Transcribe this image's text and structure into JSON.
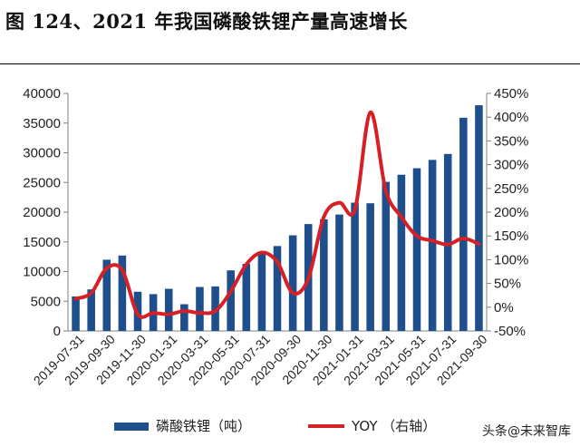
{
  "title": "图 124、2021 年我国磷酸铁锂产量高速增长",
  "watermark": "头条@未来智库",
  "chart_data": {
    "type": "bar+line",
    "colors": {
      "bar": "#1f4e8c",
      "line": "#d62026",
      "axis": "#7f7f7f"
    },
    "categories": [
      "2019-07-31",
      "2019-08-31",
      "2019-09-30",
      "2019-10-31",
      "2019-11-30",
      "2019-12-31",
      "2020-01-31",
      "2020-02-29",
      "2020-03-31",
      "2020-04-30",
      "2020-05-31",
      "2020-06-30",
      "2020-07-31",
      "2020-08-31",
      "2020-09-30",
      "2020-10-31",
      "2020-11-30",
      "2020-12-31",
      "2021-01-31",
      "2021-02-28",
      "2021-03-31",
      "2021-04-30",
      "2021-05-31",
      "2021-06-30",
      "2021-07-31",
      "2021-08-31",
      "2021-09-30"
    ],
    "x_tick_labels": [
      "2019-07-31",
      "2019-09-30",
      "2019-11-30",
      "2020-01-31",
      "2020-03-31",
      "2020-05-31",
      "2020-07-31",
      "2020-09-30",
      "2020-11-30",
      "2021-01-31",
      "2021-03-31",
      "2021-05-31",
      "2021-07-31",
      "2021-09-30"
    ],
    "series": [
      {
        "name": "磷酸铁锂（吨）",
        "type": "bar",
        "axis": "left",
        "values": [
          5800,
          7000,
          12000,
          12700,
          6600,
          6200,
          7100,
          4500,
          7400,
          7500,
          10200,
          11300,
          13200,
          14300,
          16100,
          18000,
          18800,
          19600,
          21600,
          21500,
          25100,
          26300,
          27400,
          28800,
          29800,
          35900,
          38000
        ]
      },
      {
        "name": "YOY （右轴）",
        "type": "line",
        "axis": "right",
        "values": [
          0.18,
          0.3,
          0.82,
          0.78,
          -0.15,
          -0.12,
          -0.15,
          -0.08,
          -0.12,
          -0.08,
          0.33,
          0.9,
          1.15,
          0.95,
          0.3,
          0.6,
          1.9,
          2.2,
          2.05,
          4.1,
          2.45,
          1.9,
          1.5,
          1.4,
          1.32,
          1.45,
          1.33
        ]
      }
    ],
    "y_left": {
      "min": 0,
      "max": 40000,
      "ticks": [
        "0",
        "5000",
        "10000",
        "15000",
        "20000",
        "25000",
        "30000",
        "35000",
        "40000"
      ]
    },
    "y_right": {
      "min": -0.5,
      "max": 4.5,
      "ticks": [
        "-50%",
        "0%",
        "50%",
        "100%",
        "150%",
        "200%",
        "250%",
        "300%",
        "350%",
        "400%",
        "450%"
      ]
    },
    "legend": {
      "position": "bottom",
      "bar_label": "磷酸铁锂（吨）",
      "line_label": "YOY （右轴）"
    }
  }
}
